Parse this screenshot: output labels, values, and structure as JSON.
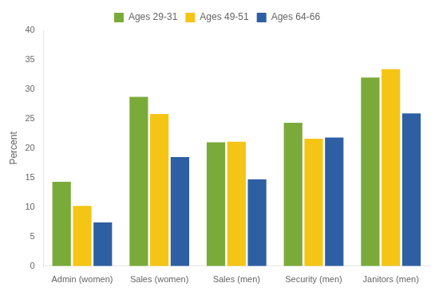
{
  "chart_data": {
    "type": "bar",
    "categories": [
      "Admin (women)",
      "Sales (women)",
      "Sales (men)",
      "Security (men)",
      "Janitors (men)"
    ],
    "series": [
      {
        "name": "Ages 29-31",
        "color": "#7aab3a",
        "values": [
          14.3,
          28.7,
          21.0,
          24.3,
          32.0
        ]
      },
      {
        "name": "Ages 49-51",
        "color": "#f5c516",
        "values": [
          10.2,
          25.8,
          21.1,
          21.6,
          33.4
        ]
      },
      {
        "name": "Ages 64-66",
        "color": "#2e5fa3",
        "values": [
          7.4,
          18.5,
          14.7,
          21.8,
          25.9
        ]
      }
    ],
    "ylabel": "Percent",
    "ylim": [
      0,
      40
    ],
    "yticks": [
      0,
      5,
      10,
      15,
      20,
      25,
      30,
      35,
      40
    ],
    "grid": false,
    "legend": "top"
  }
}
